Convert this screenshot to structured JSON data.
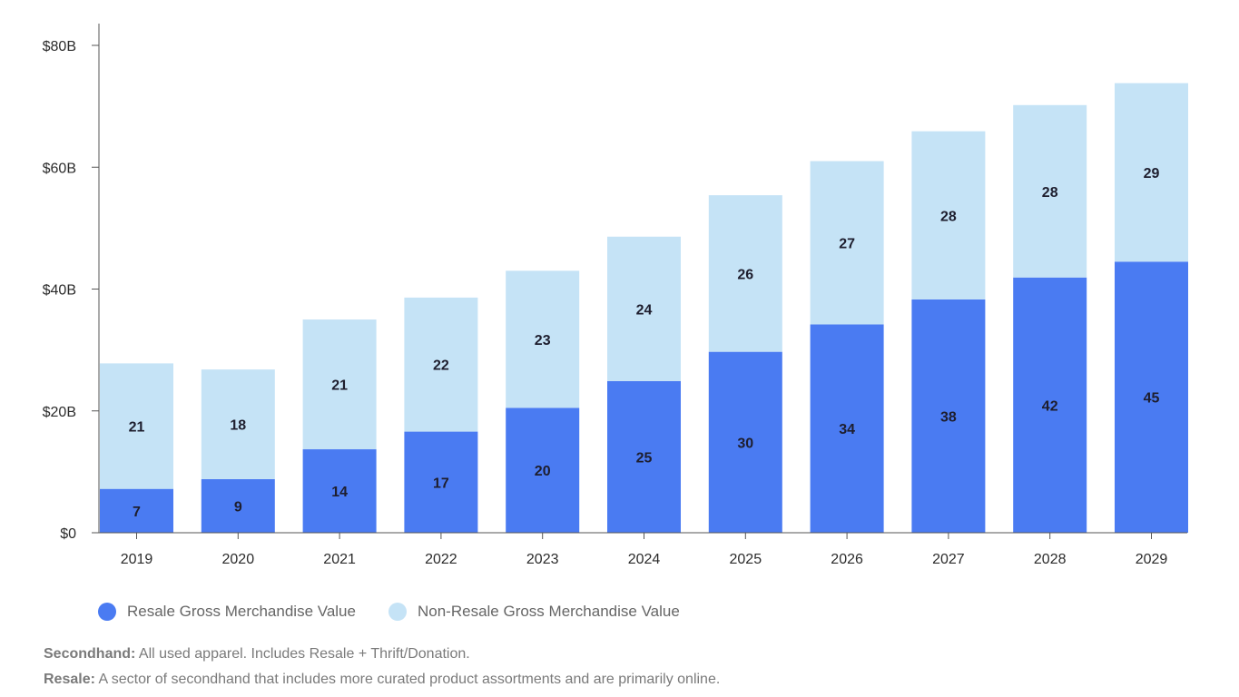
{
  "colors": {
    "resale": "#4a7bf2",
    "non_resale": "#c5e3f6",
    "axis": "#555555"
  },
  "chart_data": {
    "type": "bar",
    "stacked": true,
    "categories": [
      "2019",
      "2020",
      "2021",
      "2022",
      "2023",
      "2024",
      "2025",
      "2026",
      "2027",
      "2028",
      "2029"
    ],
    "series": [
      {
        "name": "Resale Gross Merchandise Value",
        "values": [
          7,
          9,
          14,
          17,
          20,
          25,
          30,
          34,
          38,
          42,
          45
        ],
        "plotted": [
          7.2,
          8.8,
          13.7,
          16.6,
          20.5,
          24.9,
          29.7,
          34.2,
          38.3,
          41.9,
          44.5
        ]
      },
      {
        "name": "Non-Resale Gross Merchandise Value",
        "values": [
          21,
          18,
          21,
          22,
          23,
          24,
          26,
          27,
          28,
          28,
          29
        ],
        "plotted": [
          20.6,
          18.0,
          21.3,
          22.0,
          22.5,
          23.7,
          25.7,
          26.8,
          27.6,
          28.3,
          29.3
        ]
      }
    ],
    "title": "",
    "xlabel": "",
    "ylabel": "",
    "ylim": [
      0,
      80
    ],
    "yticks": [
      0,
      20,
      40,
      60,
      80
    ],
    "ytick_labels": [
      "$0",
      "$20B",
      "$40B",
      "$60B",
      "$80B"
    ],
    "legend": "bottom-left",
    "grid": false
  },
  "legend": {
    "resale_label": "Resale Gross Merchandise Value",
    "non_resale_label": "Non-Resale Gross Merchandise Value"
  },
  "footnotes": {
    "secondhand_term": "Secondhand:",
    "secondhand_text": " All used apparel. Includes Resale + Thrift/Donation.",
    "resale_term": "Resale:",
    "resale_text": " A sector of secondhand that includes more curated product assortments and are primarily online."
  }
}
